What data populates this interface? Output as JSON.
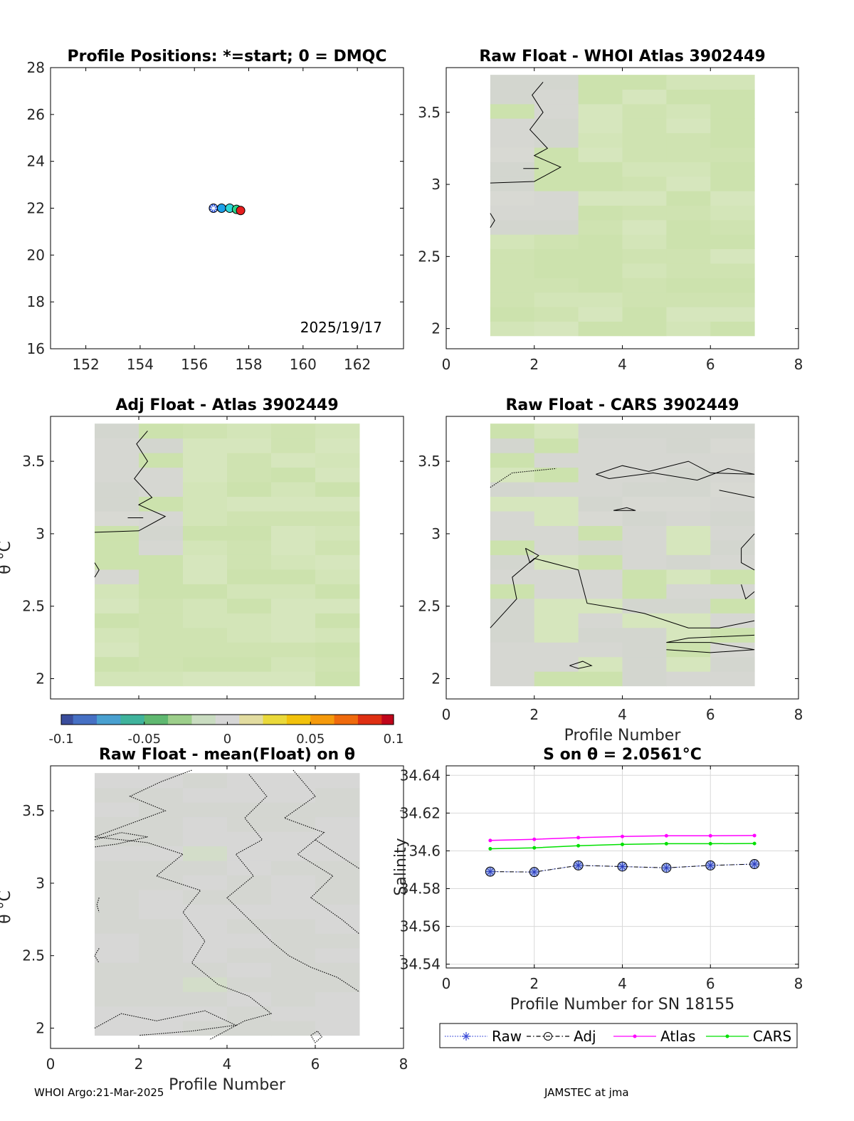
{
  "colors": {
    "axis": "#000000",
    "grid": "#d9d9d9",
    "raw_marker": "#3b4bd8",
    "adj_marker": "#000000",
    "atlas_line": "#ff00ff",
    "cars_line": "#00e000",
    "positions": [
      "#3e6be0",
      "#1ea0e8",
      "#2fd8d8",
      "#2ed48a",
      "#e61e1e"
    ]
  },
  "footer": {
    "left": "WHOI Argo:21-Mar-2025",
    "right": "JAMSTEC at jma"
  },
  "chart_data": [
    {
      "id": "positions",
      "type": "scatter",
      "title": "Profile Positions: *=start; 0 = DMQC",
      "xlim": [
        150.7,
        163.7
      ],
      "ylim": [
        16,
        28
      ],
      "xticks": [
        152,
        154,
        156,
        158,
        160,
        162
      ],
      "yticks": [
        16,
        18,
        20,
        22,
        24,
        26,
        28
      ],
      "annotation": "2025/19/17",
      "points": [
        {
          "x": 156.7,
          "y": 22.0,
          "marker": "star"
        },
        {
          "x": 157.0,
          "y": 22.0,
          "marker": "circle"
        },
        {
          "x": 157.3,
          "y": 22.0,
          "marker": "circle"
        },
        {
          "x": 157.55,
          "y": 21.95,
          "marker": "circle"
        },
        {
          "x": 157.7,
          "y": 21.9,
          "marker": "circle"
        }
      ]
    },
    {
      "id": "raw-whoi",
      "type": "heatmap",
      "title": "Raw Float - WHOI Atlas  3902449",
      "xlim": [
        0,
        8
      ],
      "ylim": [
        1.86,
        3.81
      ],
      "xticks": [
        0,
        2,
        4,
        6,
        8
      ],
      "yticks": [
        2,
        2.5,
        3,
        3.5
      ]
    },
    {
      "id": "adj-atlas",
      "type": "heatmap",
      "title": "Adj Float - Atlas  3902449",
      "ylabel": "θ °C",
      "xlim": [
        0,
        8
      ],
      "ylim": [
        1.86,
        3.81
      ],
      "yticks": [
        2,
        2.5,
        3,
        3.5
      ]
    },
    {
      "id": "raw-cars",
      "type": "heatmap",
      "title": "Raw Float - CARS  3902449",
      "xlabel": "Profile Number",
      "xlim": [
        0,
        8
      ],
      "ylim": [
        1.86,
        3.81
      ],
      "xticks": [
        0,
        2,
        4,
        6,
        8
      ],
      "yticks": [
        2,
        2.5,
        3,
        3.5
      ]
    },
    {
      "id": "colorbar",
      "type": "heatmap",
      "range": [
        -0.1,
        0.1
      ],
      "ticks": [
        "-0.1",
        "-0.05",
        "0",
        "0.05",
        "0.1"
      ]
    },
    {
      "id": "raw-mean",
      "type": "heatmap",
      "title": "Raw Float - mean(Float) on θ",
      "ylabel": "θ °C",
      "xlabel": "Profile Number",
      "xlim": [
        0,
        8
      ],
      "ylim": [
        1.86,
        3.81
      ],
      "xticks": [
        0,
        2,
        4,
        6,
        8
      ],
      "yticks": [
        2,
        2.5,
        3,
        3.5
      ]
    },
    {
      "id": "salinity",
      "type": "line",
      "title": "S on θ = 2.0561°C",
      "xlabel": "Profile Number for SN 18155",
      "ylabel": "Salinity",
      "xlim": [
        0,
        8
      ],
      "ylim": [
        34.538,
        34.645
      ],
      "xticks": [
        0,
        2,
        4,
        6,
        8
      ],
      "yticks": [
        34.54,
        34.56,
        34.58,
        34.6,
        34.62,
        34.64
      ],
      "grid": true,
      "legend_position": "bottom",
      "x": [
        1,
        2,
        3,
        4,
        5,
        6,
        7
      ],
      "series": [
        {
          "name": "Raw",
          "values": [
            34.589,
            34.5888,
            34.5923,
            34.5917,
            34.591,
            34.5923,
            34.593
          ]
        },
        {
          "name": "Adj",
          "values": [
            34.589,
            34.5888,
            34.5923,
            34.5917,
            34.591,
            34.5923,
            34.593
          ]
        },
        {
          "name": "Atlas",
          "values": [
            34.6055,
            34.6061,
            34.607,
            34.6076,
            34.608,
            34.608,
            34.6081
          ]
        },
        {
          "name": "CARS",
          "values": [
            34.6011,
            34.6016,
            34.6027,
            34.6034,
            34.6038,
            34.6038,
            34.6039
          ]
        }
      ]
    }
  ]
}
